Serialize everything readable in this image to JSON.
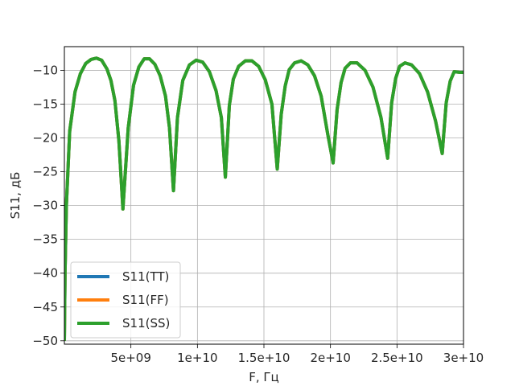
{
  "chart_data": {
    "type": "line",
    "xlabel": "F, Гц",
    "ylabel": "S11, дБ",
    "xlim": [
      0,
      30000000000
    ],
    "ylim": [
      -50.5,
      -6.5
    ],
    "x_ticks": [
      5000000000,
      10000000000,
      15000000000,
      20000000000,
      25000000000,
      30000000000
    ],
    "x_tick_labels": [
      "5e+09",
      "1e+10",
      "1.5e+10",
      "2e+10",
      "2.5e+10",
      "3e+10"
    ],
    "y_ticks": [
      -50,
      -45,
      -40,
      -35,
      -30,
      -25,
      -20,
      -15,
      -10
    ],
    "y_tick_labels": [
      "−50",
      "−45",
      "−40",
      "−35",
      "−30",
      "−25",
      "−20",
      "−15",
      "−10"
    ],
    "grid": true,
    "legend_position": "lower-left",
    "x": [
      0,
      50000000,
      150000000,
      400000000,
      800000000,
      1200000000,
      1600000000,
      2000000000,
      2400000000,
      2800000000,
      3200000000,
      3500000000,
      3800000000,
      4100000000,
      4400000000,
      4800000000,
      5200000000,
      5600000000,
      6000000000,
      6400000000,
      6800000000,
      7200000000,
      7600000000,
      7900000000,
      8200000000,
      8500000000,
      8900000000,
      9400000000,
      9900000000,
      10400000000,
      10900000000,
      11400000000,
      11800000000,
      12100000000,
      12400000000,
      12700000000,
      13100000000,
      13600000000,
      14100000000,
      14600000000,
      15100000000,
      15600000000,
      16000000000,
      16300000000,
      16600000000,
      16900000000,
      17300000000,
      17800000000,
      18300000000,
      18800000000,
      19300000000,
      19800000000,
      20200000000,
      20500000000,
      20800000000,
      21100000000,
      21500000000,
      22000000000,
      22600000000,
      23200000000,
      23800000000,
      24300000000,
      24600000000,
      24900000000,
      25200000000,
      25600000000,
      26100000000,
      26700000000,
      27300000000,
      27900000000,
      28400000000,
      28700000000,
      29000000000,
      29300000000,
      29700000000,
      30000000000
    ],
    "series": [
      {
        "name": "S11(TT)",
        "color": "#1f77b4",
        "values": [
          -50,
          -40,
          -30,
          -19,
          -13.2,
          -10.5,
          -9.0,
          -8.4,
          -8.2,
          -8.5,
          -9.8,
          -11.5,
          -14.5,
          -20.5,
          -30.5,
          -18.5,
          -12.2,
          -9.5,
          -8.3,
          -8.3,
          -9.1,
          -10.8,
          -13.8,
          -18.5,
          -27.8,
          -17.0,
          -11.5,
          -9.2,
          -8.5,
          -8.8,
          -10.2,
          -13.0,
          -17.0,
          -25.8,
          -15.2,
          -11.3,
          -9.4,
          -8.6,
          -8.6,
          -9.4,
          -11.4,
          -15.0,
          -24.6,
          -16.5,
          -12.3,
          -9.9,
          -8.9,
          -8.6,
          -9.2,
          -10.8,
          -13.8,
          -19.5,
          -23.7,
          -15.8,
          -11.8,
          -9.7,
          -8.9,
          -8.9,
          -10.0,
          -12.5,
          -17.0,
          -23.0,
          -14.8,
          -11.2,
          -9.4,
          -8.9,
          -9.2,
          -10.5,
          -13.2,
          -17.5,
          -22.3,
          -14.8,
          -11.6,
          -10.2,
          -10.3,
          -10.3
        ]
      },
      {
        "name": "S11(FF)",
        "color": "#ff7f0e",
        "values": [
          -50,
          -40,
          -30,
          -19,
          -13.2,
          -10.5,
          -9.0,
          -8.4,
          -8.2,
          -8.5,
          -9.8,
          -11.5,
          -14.5,
          -20.5,
          -30.5,
          -18.5,
          -12.2,
          -9.5,
          -8.3,
          -8.3,
          -9.1,
          -10.8,
          -13.8,
          -18.5,
          -27.8,
          -17.0,
          -11.5,
          -9.2,
          -8.5,
          -8.8,
          -10.2,
          -13.0,
          -17.0,
          -25.8,
          -15.2,
          -11.3,
          -9.4,
          -8.6,
          -8.6,
          -9.4,
          -11.4,
          -15.0,
          -24.6,
          -16.5,
          -12.3,
          -9.9,
          -8.9,
          -8.6,
          -9.2,
          -10.8,
          -13.8,
          -19.5,
          -23.7,
          -15.8,
          -11.8,
          -9.7,
          -8.9,
          -8.9,
          -10.0,
          -12.5,
          -17.0,
          -23.0,
          -14.8,
          -11.2,
          -9.4,
          -8.9,
          -9.2,
          -10.5,
          -13.2,
          -17.5,
          -22.3,
          -14.8,
          -11.6,
          -10.2,
          -10.3,
          -10.3
        ]
      },
      {
        "name": "S11(SS)",
        "color": "#2ca02c",
        "values": [
          -50,
          -40,
          -30,
          -19,
          -13.2,
          -10.5,
          -9.0,
          -8.4,
          -8.2,
          -8.5,
          -9.8,
          -11.5,
          -14.5,
          -20.5,
          -30.5,
          -18.5,
          -12.2,
          -9.5,
          -8.3,
          -8.3,
          -9.1,
          -10.8,
          -13.8,
          -18.5,
          -27.8,
          -17.0,
          -11.5,
          -9.2,
          -8.5,
          -8.8,
          -10.2,
          -13.0,
          -17.0,
          -25.8,
          -15.2,
          -11.3,
          -9.4,
          -8.6,
          -8.6,
          -9.4,
          -11.4,
          -15.0,
          -24.6,
          -16.5,
          -12.3,
          -9.9,
          -8.9,
          -8.6,
          -9.2,
          -10.8,
          -13.8,
          -19.5,
          -23.7,
          -15.8,
          -11.8,
          -9.7,
          -8.9,
          -8.9,
          -10.0,
          -12.5,
          -17.0,
          -23.0,
          -14.8,
          -11.2,
          -9.4,
          -8.9,
          -9.2,
          -10.5,
          -13.2,
          -17.5,
          -22.3,
          -14.8,
          -11.6,
          -10.2,
          -10.3,
          -10.3
        ]
      }
    ]
  }
}
